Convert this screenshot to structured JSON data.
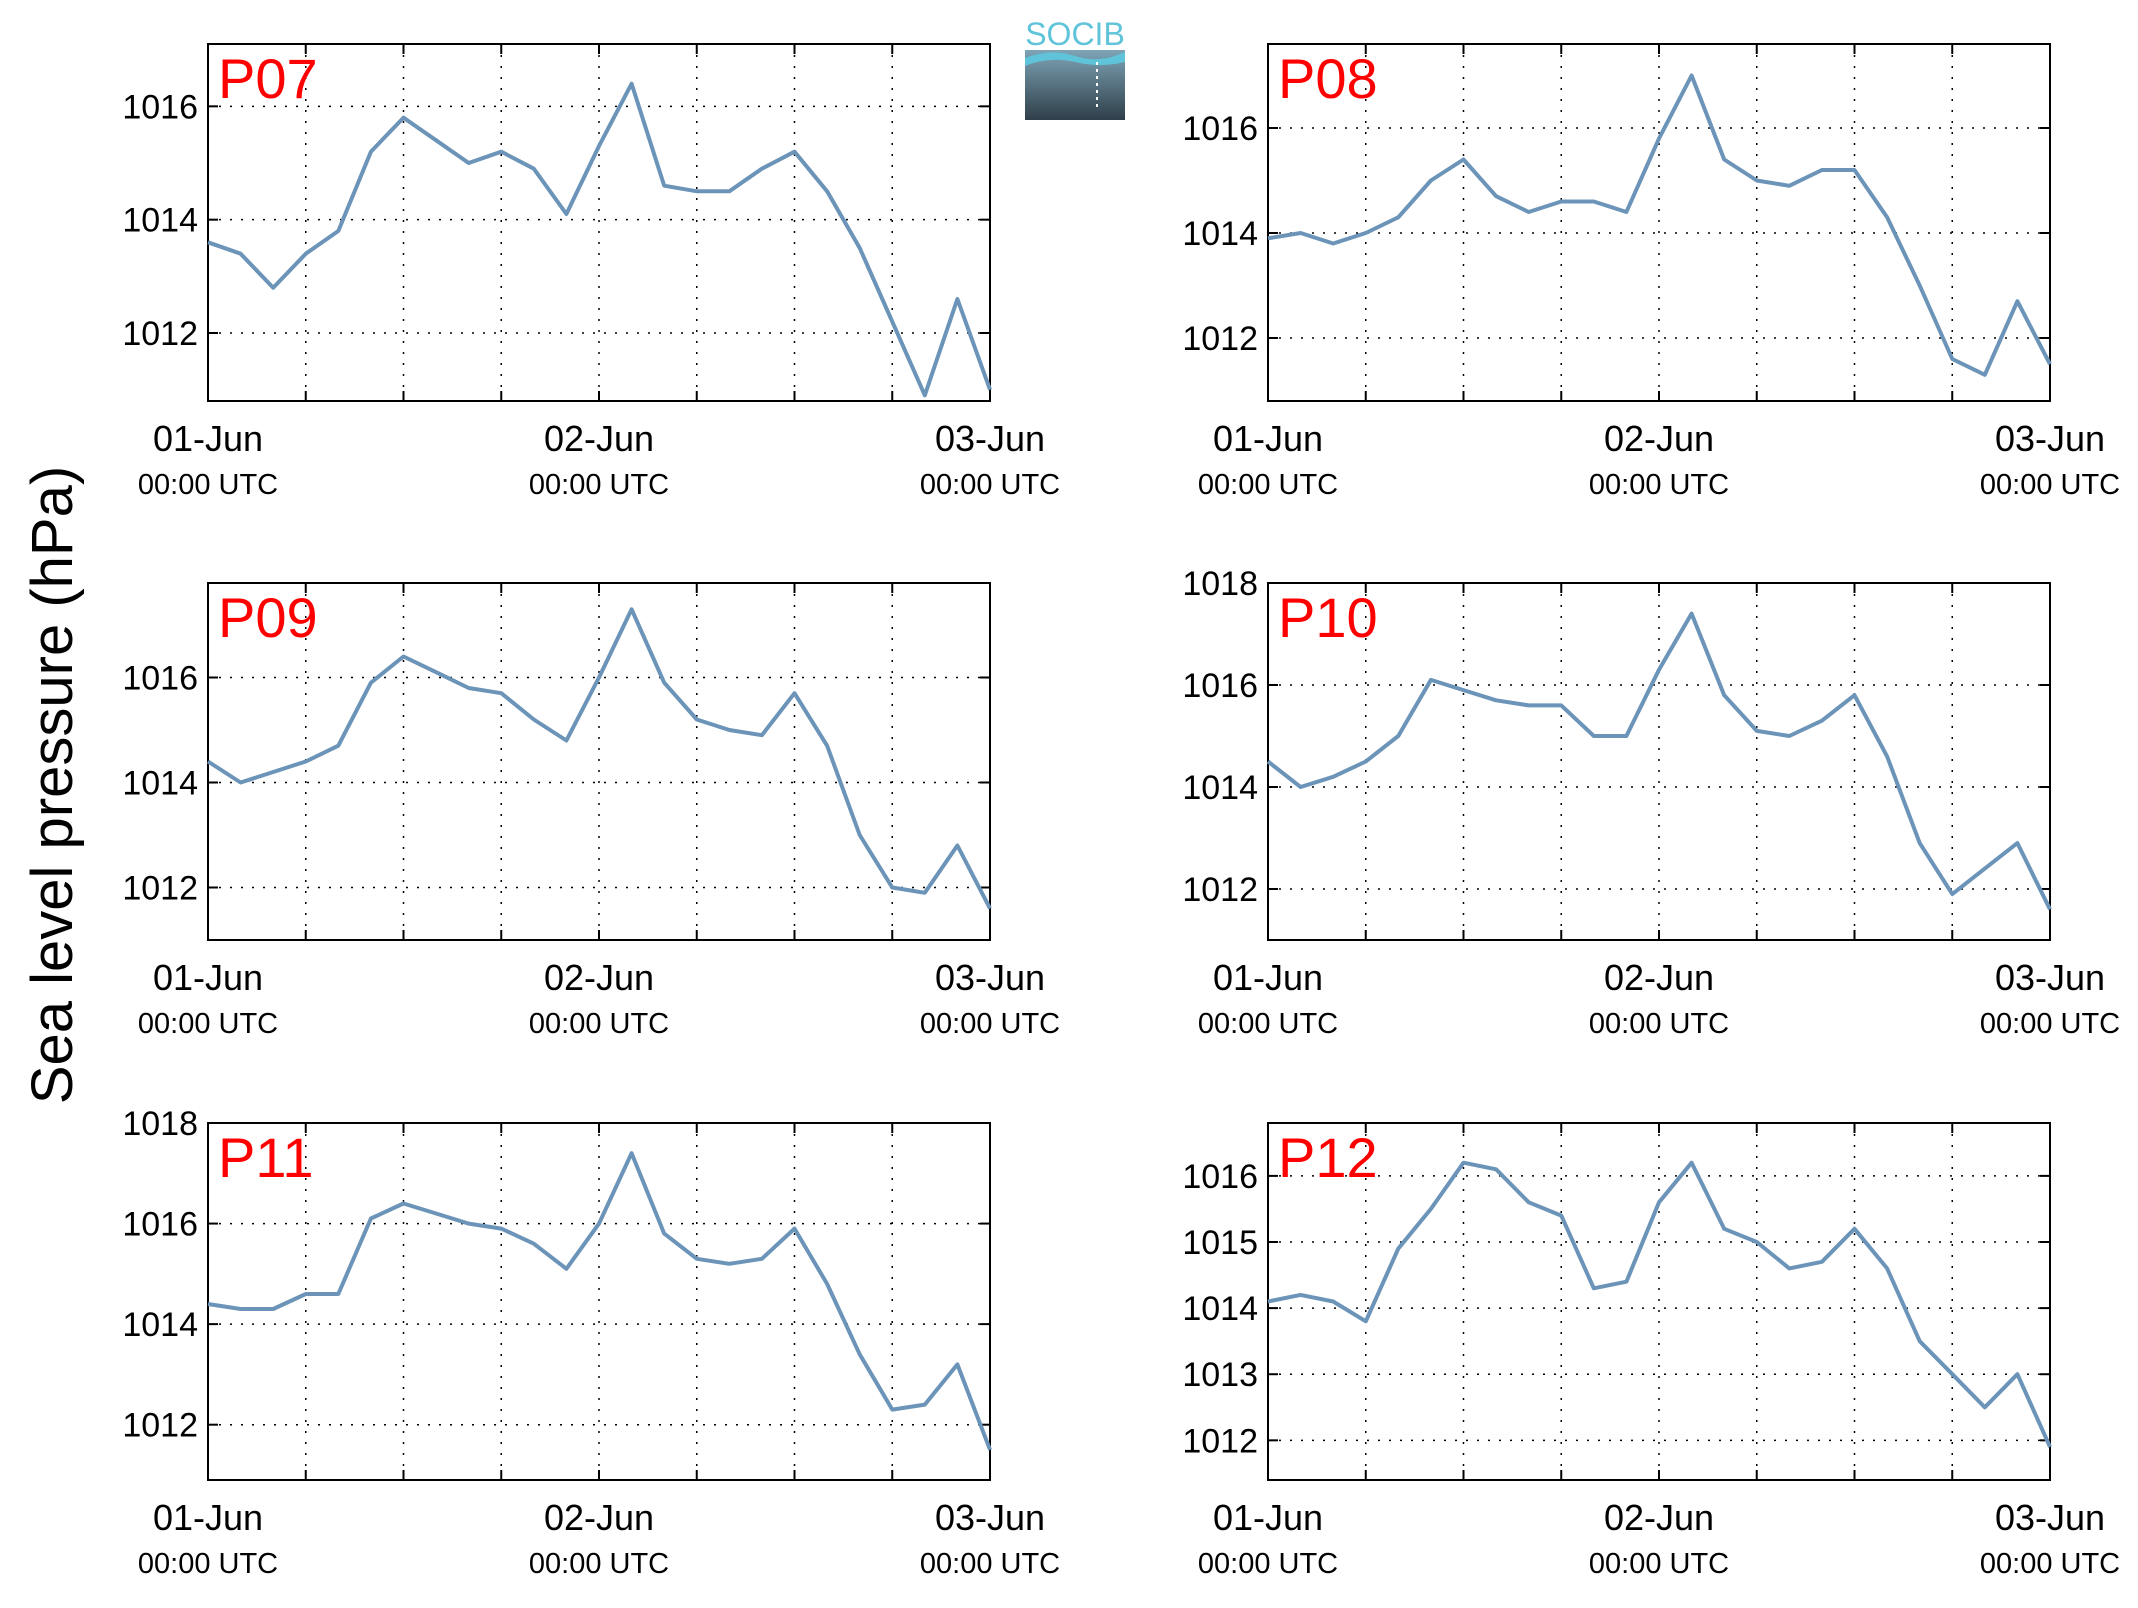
{
  "figure": {
    "ylabel": "Sea level pressure (hPa)",
    "logo_text": "SOCIB",
    "line_color": "#6b94b8",
    "label_color": "#ff0000",
    "grid": "dotted",
    "x_tick_labels": [
      {
        "date": "01-Jun",
        "time": "00:00 UTC"
      },
      {
        "date": "02-Jun",
        "time": "00:00 UTC"
      },
      {
        "date": "03-Jun",
        "time": "00:00 UTC"
      }
    ]
  },
  "chart_data": [
    {
      "type": "line",
      "name": "P07",
      "x_start": "2015-06-01 00:00 UTC",
      "x_end": "2015-06-03 00:00 UTC",
      "x_hours": [
        0,
        2,
        4,
        6,
        8,
        10,
        12,
        14,
        16,
        18,
        20,
        22,
        24,
        26,
        28,
        30,
        32,
        34,
        36,
        38,
        40,
        42,
        44,
        46,
        48
      ],
      "ylim": [
        1010.8,
        1017.1
      ],
      "yticks": [
        1012,
        1014,
        1016
      ],
      "y": [
        1013.6,
        1013.4,
        1012.8,
        1013.4,
        1013.8,
        1015.2,
        1015.8,
        1015.4,
        1015.0,
        1015.2,
        1014.9,
        1014.1,
        1015.3,
        1016.4,
        1014.6,
        1014.5,
        1014.5,
        1014.9,
        1015.2,
        1014.5,
        1013.5,
        1012.2,
        1010.9,
        1012.6,
        1011.0
      ]
    },
    {
      "type": "line",
      "name": "P08",
      "x_start": "2015-06-01 00:00 UTC",
      "x_end": "2015-06-03 00:00 UTC",
      "x_hours": [
        0,
        2,
        4,
        6,
        8,
        10,
        12,
        14,
        16,
        18,
        20,
        22,
        24,
        26,
        28,
        30,
        32,
        34,
        36,
        38,
        40,
        42,
        44,
        46,
        48
      ],
      "ylim": [
        1010.8,
        1017.6
      ],
      "yticks": [
        1012,
        1014,
        1016
      ],
      "y": [
        1013.9,
        1014.0,
        1013.8,
        1014.0,
        1014.3,
        1015.0,
        1015.4,
        1014.7,
        1014.4,
        1014.6,
        1014.6,
        1014.4,
        1015.8,
        1017.0,
        1015.4,
        1015.0,
        1014.9,
        1015.2,
        1015.2,
        1014.3,
        1013.0,
        1011.6,
        1011.3,
        1012.7,
        1011.5
      ]
    },
    {
      "type": "line",
      "name": "P09",
      "x_start": "2015-06-01 00:00 UTC",
      "x_end": "2015-06-03 00:00 UTC",
      "x_hours": [
        0,
        2,
        4,
        6,
        8,
        10,
        12,
        14,
        16,
        18,
        20,
        22,
        24,
        26,
        28,
        30,
        32,
        34,
        36,
        38,
        40,
        42,
        44,
        46,
        48
      ],
      "ylim": [
        1011.0,
        1017.8
      ],
      "yticks": [
        1012,
        1014,
        1016
      ],
      "y": [
        1014.4,
        1014.0,
        1014.2,
        1014.4,
        1014.7,
        1015.9,
        1016.4,
        1016.1,
        1015.8,
        1015.7,
        1015.2,
        1014.8,
        1016.0,
        1017.3,
        1015.9,
        1015.2,
        1015.0,
        1014.9,
        1015.7,
        1014.7,
        1013.0,
        1012.0,
        1011.9,
        1012.8,
        1011.6
      ]
    },
    {
      "type": "line",
      "name": "P10",
      "x_start": "2015-06-01 00:00 UTC",
      "x_end": "2015-06-03 00:00 UTC",
      "x_hours": [
        0,
        2,
        4,
        6,
        8,
        10,
        12,
        14,
        16,
        18,
        20,
        22,
        24,
        26,
        28,
        30,
        32,
        34,
        36,
        38,
        40,
        42,
        44,
        46,
        48
      ],
      "ylim": [
        1011.0,
        1018.0
      ],
      "yticks": [
        1012,
        1014,
        1016,
        1018
      ],
      "y": [
        1014.5,
        1014.0,
        1014.2,
        1014.5,
        1015.0,
        1016.1,
        1015.9,
        1015.7,
        1015.6,
        1015.6,
        1015.0,
        1015.0,
        1016.3,
        1017.4,
        1015.8,
        1015.1,
        1015.0,
        1015.3,
        1015.8,
        1014.6,
        1012.9,
        1011.9,
        1012.4,
        1012.9,
        1011.6
      ]
    },
    {
      "type": "line",
      "name": "P11",
      "x_start": "2015-06-01 00:00 UTC",
      "x_end": "2015-06-03 00:00 UTC",
      "x_hours": [
        0,
        2,
        4,
        6,
        8,
        10,
        12,
        14,
        16,
        18,
        20,
        22,
        24,
        26,
        28,
        30,
        32,
        34,
        36,
        38,
        40,
        42,
        44,
        46,
        48
      ],
      "ylim": [
        1010.9,
        1018.0
      ],
      "yticks": [
        1012,
        1014,
        1016,
        1018
      ],
      "y": [
        1014.4,
        1014.3,
        1014.3,
        1014.6,
        1014.6,
        1016.1,
        1016.4,
        1016.2,
        1016.0,
        1015.9,
        1015.6,
        1015.1,
        1016.0,
        1017.4,
        1015.8,
        1015.3,
        1015.2,
        1015.3,
        1015.9,
        1014.8,
        1013.4,
        1012.3,
        1012.4,
        1013.2,
        1011.5
      ]
    },
    {
      "type": "line",
      "name": "P12",
      "x_start": "2015-06-01 00:00 UTC",
      "x_end": "2015-06-03 00:00 UTC",
      "x_hours": [
        0,
        2,
        4,
        6,
        8,
        10,
        12,
        14,
        16,
        18,
        20,
        22,
        24,
        26,
        28,
        30,
        32,
        34,
        36,
        38,
        40,
        42,
        44,
        46,
        48
      ],
      "ylim": [
        1011.4,
        1016.8
      ],
      "yticks": [
        1012,
        1013,
        1014,
        1015,
        1016
      ],
      "y": [
        1014.1,
        1014.2,
        1014.1,
        1013.8,
        1014.9,
        1015.5,
        1016.2,
        1016.1,
        1015.6,
        1015.4,
        1014.3,
        1014.4,
        1015.6,
        1016.2,
        1015.2,
        1015.0,
        1014.6,
        1014.7,
        1015.2,
        1014.6,
        1013.5,
        1013.0,
        1012.5,
        1013.0,
        1011.9
      ]
    }
  ]
}
